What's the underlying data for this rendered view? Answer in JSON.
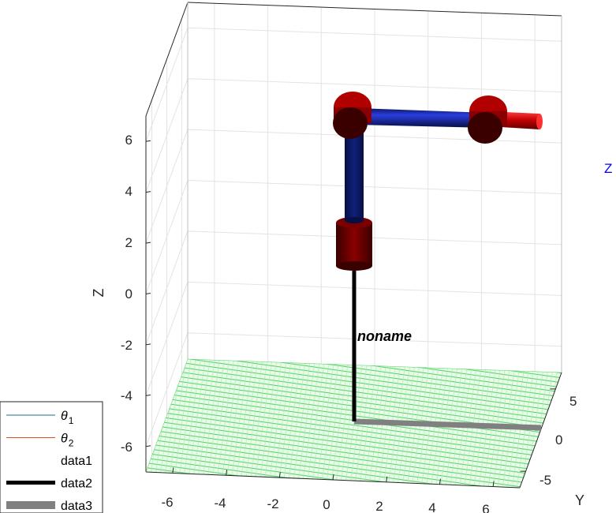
{
  "chart_data": {
    "type": "line",
    "xlabel": "",
    "ylabel": "Y",
    "zlabel": "Z",
    "x_ticks": [
      "-6",
      "-4",
      "-2",
      "0",
      "2",
      "4",
      "6"
    ],
    "y_ticks": [
      "5",
      "0",
      "-5"
    ],
    "z_ticks": [
      "6",
      "4",
      "2",
      "0",
      "-2",
      "-4",
      "-6"
    ],
    "xlim": [
      -7,
      7
    ],
    "ylim": [
      -7,
      7
    ],
    "zlim": [
      -7,
      7
    ],
    "grid": true,
    "floor_color": "#4fd060",
    "robot_label": "noname",
    "axis_marker": "Z",
    "axis_marker_color": "#0000ff",
    "legend": {
      "placement": "bottom-left",
      "entries": [
        {
          "name": "θ",
          "subscript": "1",
          "color": "#1f6f80",
          "width": 1
        },
        {
          "name": "θ",
          "subscript": "2",
          "color": "#d9531e",
          "width": 1
        },
        {
          "name": "data1",
          "subscript": "",
          "color": "none",
          "width": 0
        },
        {
          "name": "data2",
          "subscript": "",
          "color": "#000000",
          "width": 5
        },
        {
          "name": "data3",
          "subscript": "",
          "color": "#808080",
          "width": 10
        }
      ]
    },
    "colors": {
      "joint": "#8a0000",
      "joint_dark": "#3a0000",
      "link": "#0b1a6a",
      "link_light": "#1c2fc0",
      "tool": "#d00000",
      "base_line": "#000000",
      "shadow_line": "#808080"
    }
  }
}
